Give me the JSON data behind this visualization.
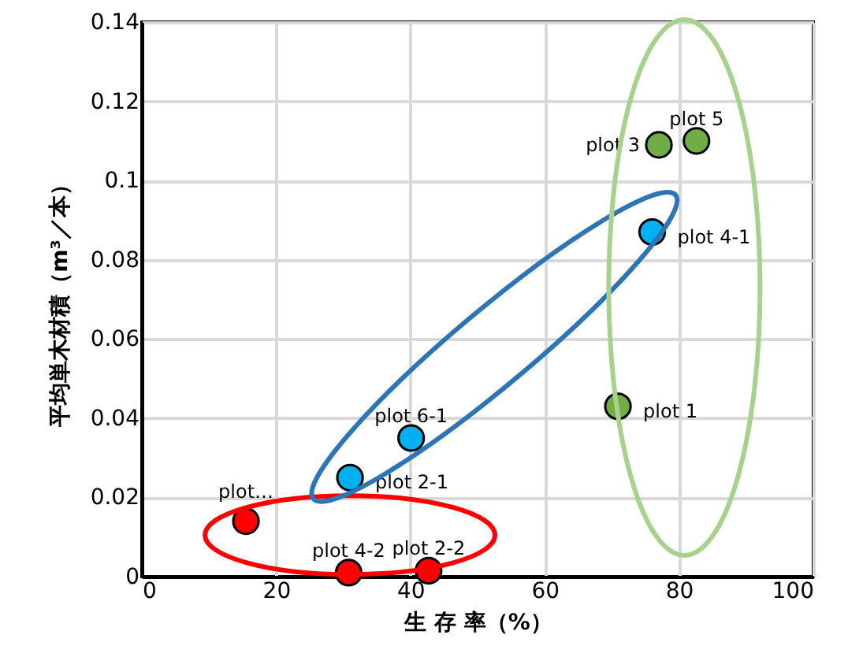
{
  "chart_data": {
    "type": "scatter",
    "xlabel": "生 存 率（%）",
    "ylabel": "平均単木材積（m³／本）",
    "xlim": [
      0,
      100
    ],
    "xticks": [
      0,
      20,
      40,
      60,
      80,
      100
    ],
    "ylim": [
      0,
      0.14
    ],
    "yticks": [
      0,
      0.02,
      0.04,
      0.06,
      0.08,
      0.1,
      0.12,
      0.14
    ],
    "grid": true,
    "marker": "circle",
    "series": [
      {
        "color": "#ff0000",
        "x": [
          15.5,
          30.8,
          42.7
        ],
        "values": [
          0.014,
          0.001,
          0.0015
        ]
      },
      {
        "color": "#00b0f0",
        "x": [
          31,
          40.1,
          76
        ],
        "values": [
          0.025,
          0.035,
          0.087
        ]
      },
      {
        "color": "#70ad47",
        "x": [
          70.9,
          77,
          82.6
        ],
        "values": [
          0.043,
          0.109,
          0.11
        ]
      }
    ],
    "annotations": [
      {
        "text": "plot…",
        "x": 15.5,
        "y": 0.014
      },
      {
        "text": "plot 4-2",
        "x": 30.8,
        "y": 0.001
      },
      {
        "text": "plot 2-2",
        "x": 42.7,
        "y": 0.0015
      },
      {
        "text": "plot 2-1",
        "x": 31,
        "y": 0.025
      },
      {
        "text": "plot 6-1",
        "x": 40.1,
        "y": 0.035
      },
      {
        "text": "plot 4-1",
        "x": 76,
        "y": 0.087
      },
      {
        "text": "plot 1",
        "x": 70.9,
        "y": 0.043
      },
      {
        "text": "plot 3",
        "x": 77,
        "y": 0.109
      },
      {
        "text": "plot 5",
        "x": 82.6,
        "y": 0.11
      }
    ]
  }
}
